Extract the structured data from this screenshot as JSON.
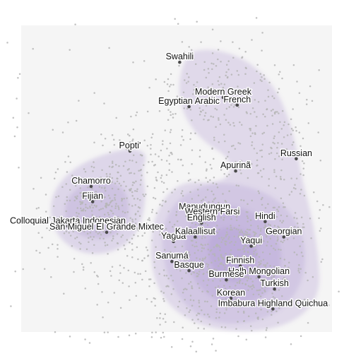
{
  "chart_data": {
    "type": "scatter",
    "title": "",
    "xlabel": "",
    "ylabel": "",
    "xlim": [
      0,
      100
    ],
    "ylim": [
      0,
      100
    ],
    "grid": false,
    "colors": {
      "panel": "#f5f5f5",
      "density": "#8a6bbe",
      "background_points": "#b5b5b5",
      "highlight_points": "#4a4a4a",
      "label_text": "#111111"
    },
    "labeled_points": [
      {
        "label": "Swahili",
        "x": 51.0,
        "y": 88.0
      },
      {
        "label": "Modern Greek",
        "x": 65.0,
        "y": 76.5
      },
      {
        "label": "Egyptian Arabic",
        "x": 54.0,
        "y": 73.5
      },
      {
        "label": "French",
        "x": 69.5,
        "y": 74.0
      },
      {
        "label": "Russian",
        "x": 88.5,
        "y": 56.5
      },
      {
        "label": "Popti'",
        "x": 35.0,
        "y": 59.0
      },
      {
        "label": "Apurinã",
        "x": 69.0,
        "y": 52.5
      },
      {
        "label": "Chamorro",
        "x": 22.5,
        "y": 47.5
      },
      {
        "label": "Fijian",
        "x": 23.0,
        "y": 42.5
      },
      {
        "label": "Mapudungun",
        "x": 59.0,
        "y": 39.0
      },
      {
        "label": "Western Farsi",
        "x": 61.5,
        "y": 37.5
      },
      {
        "label": "Colloquial Jakarta Indonesian",
        "x": 15.0,
        "y": 34.5
      },
      {
        "label": "English",
        "x": 58.0,
        "y": 35.5
      },
      {
        "label": "Hindi",
        "x": 78.5,
        "y": 36.0
      },
      {
        "label": "San Miguel El Grande Mixtec",
        "x": 27.5,
        "y": 32.5
      },
      {
        "label": "Yagua",
        "x": 49.0,
        "y": 29.5
      },
      {
        "label": "Kalaallisut",
        "x": 56.0,
        "y": 31.0
      },
      {
        "label": "Georgian",
        "x": 84.5,
        "y": 31.0
      },
      {
        "label": "Yaqui",
        "x": 74.0,
        "y": 28.0
      },
      {
        "label": "Sanumá",
        "x": 48.5,
        "y": 23.0
      },
      {
        "label": "Finnish",
        "x": 70.5,
        "y": 21.5
      },
      {
        "label": "Basque",
        "x": 54.0,
        "y": 20.0
      },
      {
        "label": "Halh Mongolian",
        "x": 76.5,
        "y": 18.0
      },
      {
        "label": "Burmese",
        "x": 66.0,
        "y": 17.0
      },
      {
        "label": "Turkish",
        "x": 81.5,
        "y": 14.0
      },
      {
        "label": "Korean",
        "x": 67.5,
        "y": 11.0
      },
      {
        "label": "Imbabura Highland Quichua",
        "x": 81.0,
        "y": 7.5
      }
    ]
  }
}
